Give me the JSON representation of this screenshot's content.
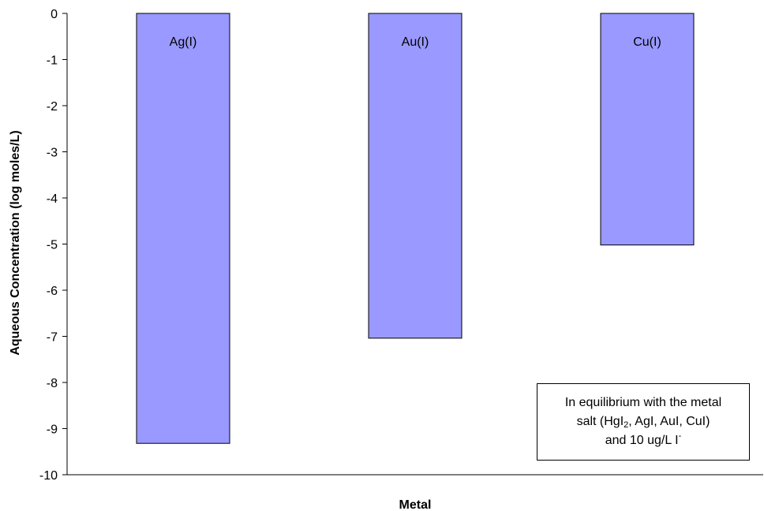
{
  "chart_data": {
    "type": "bar",
    "categories": [
      "Ag(I)",
      "Au(I)",
      "Cu(I)"
    ],
    "values": [
      -9.32,
      -7.04,
      -5.02
    ],
    "xlabel": "Metal",
    "ylabel": "Aqueous Concentration (log moles/L)",
    "ylim": [
      -10,
      0
    ],
    "yticks": [
      "0",
      "-1",
      "-2",
      "-3",
      "-4",
      "-5",
      "-6",
      "-7",
      "-8",
      "-9",
      "-10"
    ],
    "grid": false,
    "bar_color": "#9999ff",
    "annotation": {
      "line1": "In equilibrium with the metal",
      "line2_prefix": "salt (HgI",
      "line2_sub": "2",
      "line2_suffix": ", AgI, AuI, CuI)",
      "line3_prefix": "and 10 ug/L I",
      "line3_sup": "-"
    }
  }
}
